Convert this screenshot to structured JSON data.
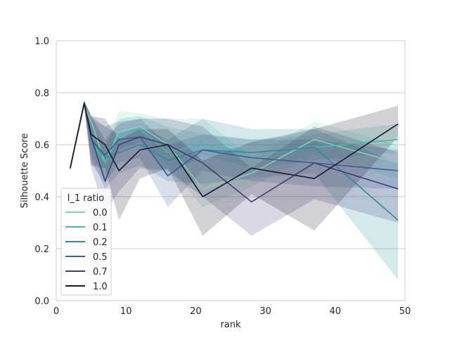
{
  "chart_data": {
    "type": "line",
    "xlabel": "rank",
    "ylabel": "Silhouette Score",
    "xlim": [
      0,
      50
    ],
    "ylim": [
      0.0,
      1.0
    ],
    "x_ticks": [
      "0",
      "10",
      "20",
      "30",
      "40",
      "50"
    ],
    "y_ticks": [
      "0.0",
      "0.2",
      "0.4",
      "0.6",
      "0.8",
      "1.0"
    ],
    "grid": "horizontal",
    "legend": {
      "title": "l_1 ratio",
      "placement": "lower-left"
    },
    "x": [
      2,
      4,
      5,
      7,
      9,
      12,
      16,
      21,
      28,
      37,
      49
    ],
    "series": [
      {
        "name": "0.0",
        "color": "#7fd3b4",
        "values": [
          0.51,
          0.75,
          0.69,
          0.53,
          0.65,
          0.67,
          0.6,
          0.43,
          0.49,
          0.62,
          0.53
        ],
        "lower": [
          0.5,
          0.74,
          0.66,
          0.47,
          0.58,
          0.61,
          0.52,
          0.36,
          0.44,
          0.56,
          0.47
        ],
        "upper": [
          0.52,
          0.76,
          0.72,
          0.6,
          0.73,
          0.72,
          0.7,
          0.7,
          0.55,
          0.69,
          0.6
        ]
      },
      {
        "name": "0.1",
        "color": "#3ebcab",
        "values": [
          0.51,
          0.76,
          0.62,
          0.53,
          0.64,
          0.66,
          0.57,
          0.6,
          0.57,
          0.59,
          0.62
        ],
        "lower": [
          0.5,
          0.75,
          0.57,
          0.46,
          0.58,
          0.61,
          0.48,
          0.56,
          0.51,
          0.54,
          0.57
        ],
        "upper": [
          0.52,
          0.77,
          0.68,
          0.59,
          0.7,
          0.71,
          0.67,
          0.64,
          0.62,
          0.64,
          0.68
        ]
      },
      {
        "name": "0.2",
        "color": "#2b8c9e",
        "values": [
          0.51,
          0.76,
          0.62,
          0.55,
          0.57,
          0.6,
          0.54,
          0.58,
          0.57,
          0.59,
          0.31
        ],
        "lower": [
          0.5,
          0.75,
          0.55,
          0.43,
          0.49,
          0.52,
          0.46,
          0.45,
          0.47,
          0.49,
          0.08
        ],
        "upper": [
          0.52,
          0.77,
          0.7,
          0.67,
          0.64,
          0.67,
          0.62,
          0.7,
          0.66,
          0.66,
          0.53
        ]
      },
      {
        "name": "0.5",
        "color": "#3f5d96",
        "values": [
          0.51,
          0.76,
          0.62,
          0.56,
          0.62,
          0.63,
          0.48,
          0.58,
          0.55,
          0.53,
          0.5
        ],
        "lower": [
          0.5,
          0.75,
          0.53,
          0.45,
          0.53,
          0.55,
          0.36,
          0.5,
          0.46,
          0.44,
          0.43
        ],
        "upper": [
          0.52,
          0.77,
          0.71,
          0.67,
          0.69,
          0.7,
          0.6,
          0.64,
          0.62,
          0.62,
          0.58
        ]
      },
      {
        "name": "0.7",
        "color": "#413d76",
        "values": [
          0.51,
          0.76,
          0.63,
          0.46,
          0.6,
          0.63,
          0.6,
          0.53,
          0.38,
          0.53,
          0.43
        ],
        "lower": [
          0.5,
          0.75,
          0.51,
          0.34,
          0.42,
          0.51,
          0.5,
          0.4,
          0.25,
          0.39,
          0.3
        ],
        "upper": [
          0.52,
          0.77,
          0.71,
          0.62,
          0.68,
          0.7,
          0.7,
          0.67,
          0.51,
          0.67,
          0.57
        ]
      },
      {
        "name": "1.0",
        "color": "#1d1a2f",
        "values": [
          0.51,
          0.76,
          0.64,
          0.6,
          0.5,
          0.58,
          0.6,
          0.4,
          0.51,
          0.47,
          0.68
        ],
        "lower": [
          0.5,
          0.75,
          0.52,
          0.51,
          0.31,
          0.47,
          0.51,
          0.25,
          0.41,
          0.27,
          0.63
        ],
        "upper": [
          0.52,
          0.77,
          0.71,
          0.7,
          0.62,
          0.66,
          0.66,
          0.54,
          0.61,
          0.66,
          0.75
        ]
      }
    ]
  }
}
